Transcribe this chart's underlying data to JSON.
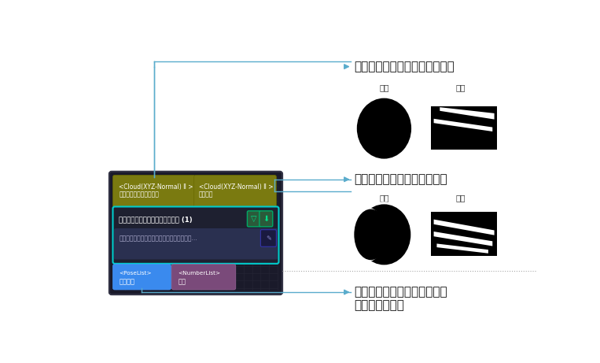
{
  "bg_color": "#ffffff",
  "label1": "複数回フィルタリング後の点群",
  "label2": "一回フィルタリング後の点群",
  "label3_1": "カメラ座標系における、丸穴",
  "label3_2": "の中心位置姿勢",
  "sublabel_front": "正面",
  "sublabel_side": "側面",
  "input1_line1": "<Cloud(XYZ-Normal) Ⅱ >",
  "input1_line2": "法線ベクトル付きの点群",
  "input2_line1": "<Cloud(XYZ-Normal) Ⅱ >",
  "input2_line2": "元の点群",
  "main_title": "丸穴の中心位置姿勢と直径を計算 (1)",
  "main_desc": "丸穴を検出し、カメラの座標系における丸穴...",
  "out1_line1": "<PoseList>",
  "out1_line2": "位置姿勢",
  "out2_line1": "<NumberList>",
  "out2_line2": "結果",
  "arrow_color": "#5aaccc",
  "node_dark": "#1a1a2a",
  "node_edge": "#2a2a3a",
  "olive": "#7a7a10",
  "olive_edge": "#6a6a00",
  "cyan_edge": "#00cccc",
  "main_dark": "#1e2030",
  "desc_blue": "#2a3050",
  "out1_blue": "#3a8aee",
  "out2_purple": "#7a4a7a",
  "green_icon": "#2a5a3a",
  "green_icon_edge": "#00aa66"
}
